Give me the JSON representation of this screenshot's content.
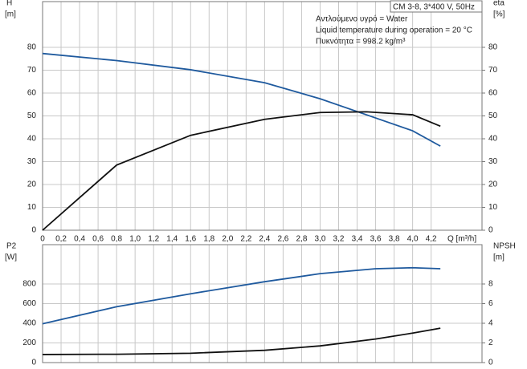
{
  "chart_data": [
    {
      "type": "line",
      "title": "CM 3-8, 3*400 V, 50Hz",
      "notes": [
        "Αντλούμενο υγρό = Water",
        "Liquid temperature during operation = 20 °C",
        "Πυκνότητα = 998.2 kg/m³"
      ],
      "ylabel": "H",
      "yunit": "[m]",
      "y2label": "eta",
      "y2unit": "[%]",
      "xlabel": "Q [m³/h]",
      "x": [
        0,
        0.8,
        1.6,
        2.4,
        3.0,
        3.5,
        4.0,
        4.3
      ],
      "series": [
        {
          "color": "#1f5a9e",
          "values": [
            77.3,
            74.2,
            70.2,
            64.5,
            57.5,
            50.5,
            43.5,
            36.8
          ]
        },
        {
          "color": "#111111",
          "axis": "y2",
          "values": [
            0,
            28.5,
            41.5,
            48.5,
            51.5,
            51.8,
            50.5,
            45.5
          ]
        }
      ],
      "xlim": [
        0,
        4.75
      ],
      "xticks": [
        0,
        {
          "value": 0.2,
          "label": "0,2"
        },
        {
          "value": 0.4,
          "label": "0,4"
        },
        {
          "value": 0.6,
          "label": "0,6"
        },
        {
          "value": 0.8,
          "label": "0,8"
        },
        {
          "value": 1.0,
          "label": "1,0"
        },
        {
          "value": 1.2,
          "label": "1,2"
        },
        {
          "value": 1.4,
          "label": "1,4"
        },
        {
          "value": 1.6,
          "label": "1,6"
        },
        {
          "value": 1.8,
          "label": "1,8"
        },
        {
          "value": 2.0,
          "label": "2,0"
        },
        {
          "value": 2.2,
          "label": "2,2"
        },
        {
          "value": 2.4,
          "label": "2,4"
        },
        {
          "value": 2.6,
          "label": "2,6"
        },
        {
          "value": 2.8,
          "label": "2,8"
        },
        {
          "value": 3.0,
          "label": "3,0"
        },
        {
          "value": 3.2,
          "label": "3,2"
        },
        {
          "value": 3.4,
          "label": "3,4"
        },
        {
          "value": 3.6,
          "label": "3,6"
        },
        {
          "value": 3.8,
          "label": "3,8"
        },
        {
          "value": 4.0,
          "label": "4,0"
        },
        {
          "value": 4.2,
          "label": "4,2"
        }
      ],
      "ylim": [
        0,
        100
      ],
      "yticks": [
        0,
        10,
        20,
        30,
        40,
        50,
        60,
        70,
        80
      ],
      "y2lim": [
        0,
        100
      ],
      "y2ticks": [
        0,
        10,
        20,
        30,
        40,
        50,
        60,
        70,
        80
      ],
      "grid": true
    },
    {
      "type": "line",
      "ylabel": "P2",
      "yunit": "[W]",
      "y2label": "NPSH",
      "y2unit": "[m]",
      "x": [
        0,
        0.8,
        1.6,
        2.4,
        3.0,
        3.6,
        4.0,
        4.3
      ],
      "series": [
        {
          "color": "#1f5a9e",
          "values": [
            395,
            568,
            700,
            823,
            905,
            955,
            965,
            955
          ]
        },
        {
          "color": "#111111",
          "axis": "y2",
          "values": [
            0.82,
            0.85,
            0.95,
            1.25,
            1.7,
            2.4,
            3.0,
            3.5
          ]
        }
      ],
      "xlim": [
        0,
        4.75
      ],
      "xticks": [
        0,
        0.2,
        0.4,
        0.6,
        0.8,
        1.0,
        1.2,
        1.4,
        1.6,
        1.8,
        2.0,
        2.2,
        2.4,
        2.6,
        2.8,
        3.0,
        3.2,
        3.4,
        3.6,
        3.8,
        4.0,
        4.2
      ],
      "ylim": [
        0,
        1200
      ],
      "yticks": [
        0,
        200,
        400,
        600,
        800
      ],
      "y2lim": [
        0,
        12
      ],
      "y2ticks": [
        0,
        2,
        4,
        6,
        8
      ],
      "grid": true
    }
  ]
}
